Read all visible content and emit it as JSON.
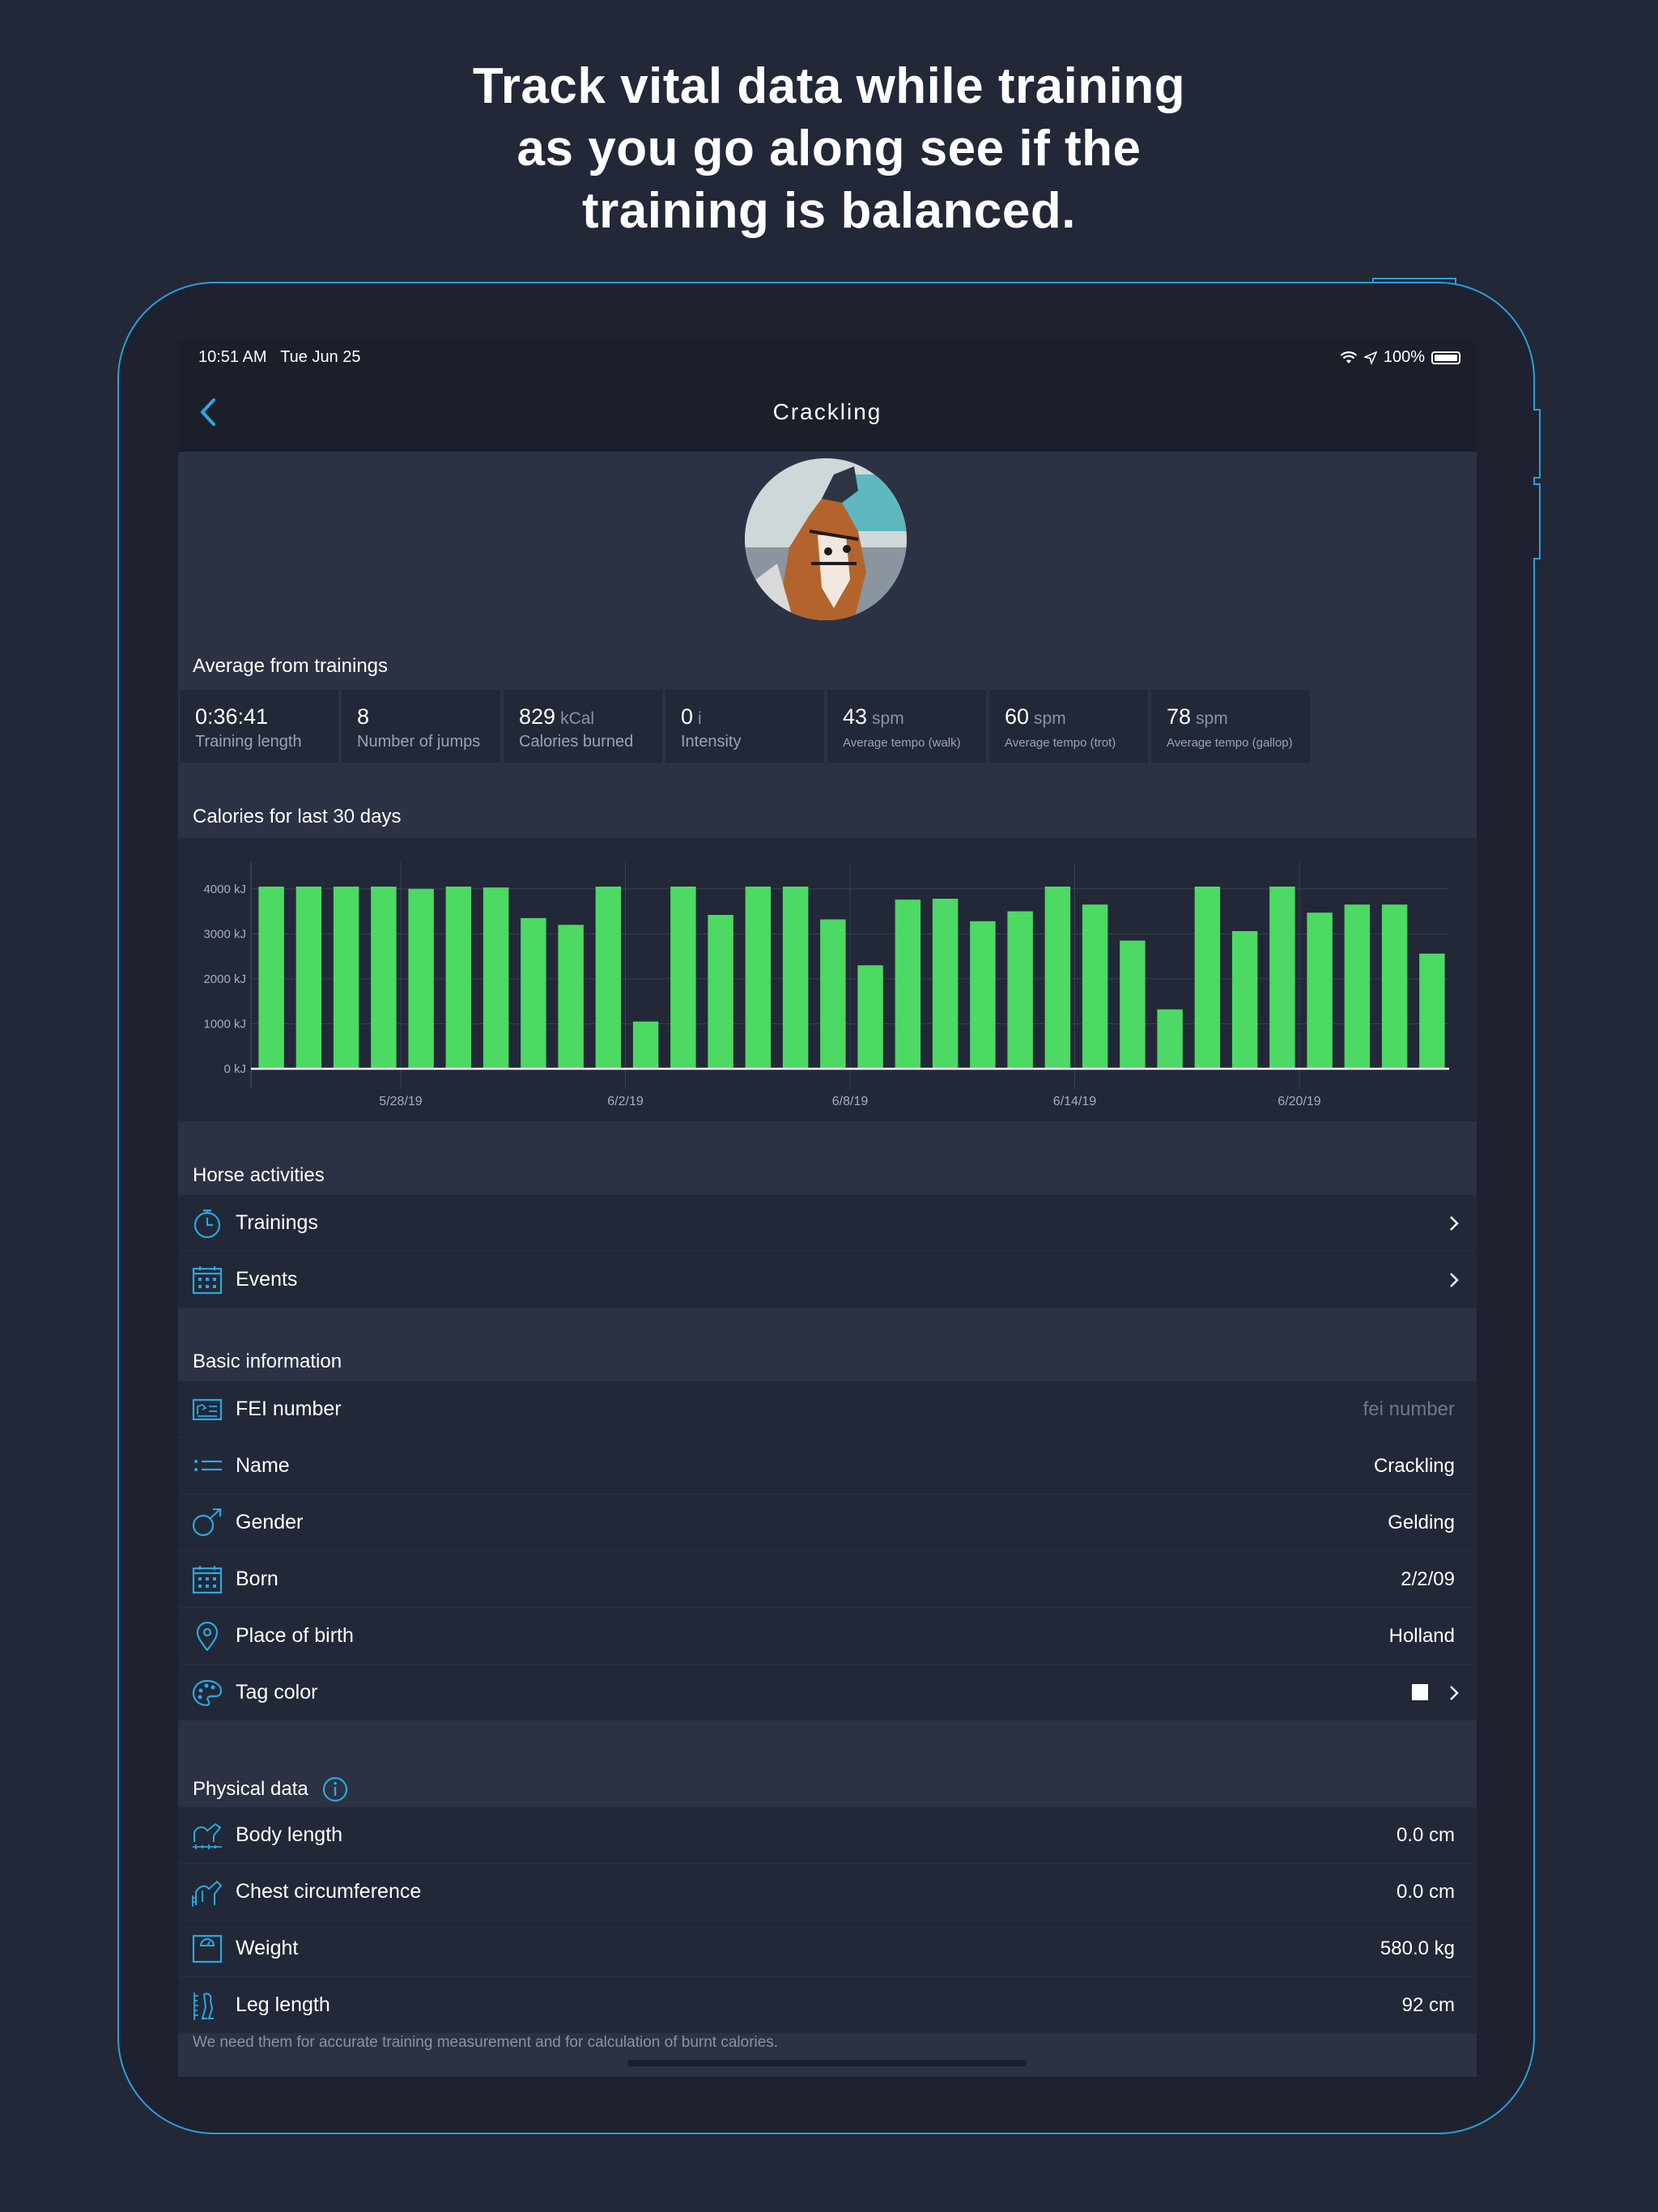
{
  "headline": [
    "Track vital data while training",
    "as you go along see if the",
    "training is balanced."
  ],
  "status": {
    "time": "10:51 AM",
    "date": "Tue Jun 25",
    "battery": "100%"
  },
  "nav": {
    "title": "Crackling"
  },
  "averages": {
    "title": "Average from trainings",
    "items": [
      {
        "value": "0:36:41",
        "unit": "",
        "label": "Training length"
      },
      {
        "value": "8",
        "unit": "",
        "label": "Number of jumps"
      },
      {
        "value": "829",
        "unit": "kCal",
        "label": "Calories burned"
      },
      {
        "value": "0",
        "unit": "i",
        "label": "Intensity"
      },
      {
        "value": "43",
        "unit": "spm",
        "label": "Average tempo (walk)"
      },
      {
        "value": "60",
        "unit": "spm",
        "label": "Average tempo (trot)"
      },
      {
        "value": "78",
        "unit": "spm",
        "label": "Average tempo (gallop)"
      }
    ]
  },
  "calories_title": "Calories for last 30 days",
  "chart_data": {
    "type": "bar",
    "title": "Calories for last 30 days",
    "color": "#4cd964",
    "ylim": [
      0,
      4500
    ],
    "yticks": [
      0,
      1000,
      2000,
      3000,
      4000
    ],
    "ytick_labels": [
      "0 kJ",
      "1000 kJ",
      "2000 kJ",
      "3000 kJ",
      "4000 kJ"
    ],
    "xtick_labels": [
      "5/28/19",
      "6/2/19",
      "6/8/19",
      "6/14/19",
      "6/20/19"
    ],
    "xtick_after_bar": [
      4,
      10,
      16,
      22,
      28
    ],
    "values": [
      4050,
      4050,
      4050,
      4050,
      4000,
      4050,
      4030,
      3350,
      3200,
      4050,
      1050,
      4050,
      3420,
      4050,
      4050,
      3320,
      2300,
      3760,
      3780,
      3280,
      3500,
      4050,
      3650,
      2850,
      1320,
      4050,
      3060,
      4050,
      3470,
      3650,
      3650,
      2560
    ],
    "grid": true
  },
  "horse_activities": {
    "title": "Horse activities",
    "items": [
      {
        "label": "Trainings",
        "icon": "stopwatch-icon"
      },
      {
        "label": "Events",
        "icon": "calendar-icon"
      }
    ]
  },
  "basic_info": {
    "title": "Basic information",
    "fei": {
      "label": "FEI number",
      "placeholder": "fei number"
    },
    "name": {
      "label": "Name",
      "value": "Crackling"
    },
    "gender": {
      "label": "Gender",
      "value": "Gelding"
    },
    "born": {
      "label": "Born",
      "value": "2/2/09"
    },
    "place": {
      "label": "Place of birth",
      "value": "Holland"
    },
    "tag": {
      "label": "Tag color",
      "color": "#ffffff"
    }
  },
  "physical": {
    "title": "Physical data",
    "items": [
      {
        "label": "Body length",
        "value": "0.0  cm"
      },
      {
        "label": "Chest circumference",
        "value": "0.0  cm"
      },
      {
        "label": "Weight",
        "value": "580.0  kg"
      },
      {
        "label": "Leg length",
        "value": "92  cm"
      }
    ],
    "footnote": "We need them for accurate training measurement and for calculation of burnt calories."
  },
  "colors": {
    "accent": "#2aa8e0",
    "bar": "#4cd964",
    "background": "#222837"
  }
}
